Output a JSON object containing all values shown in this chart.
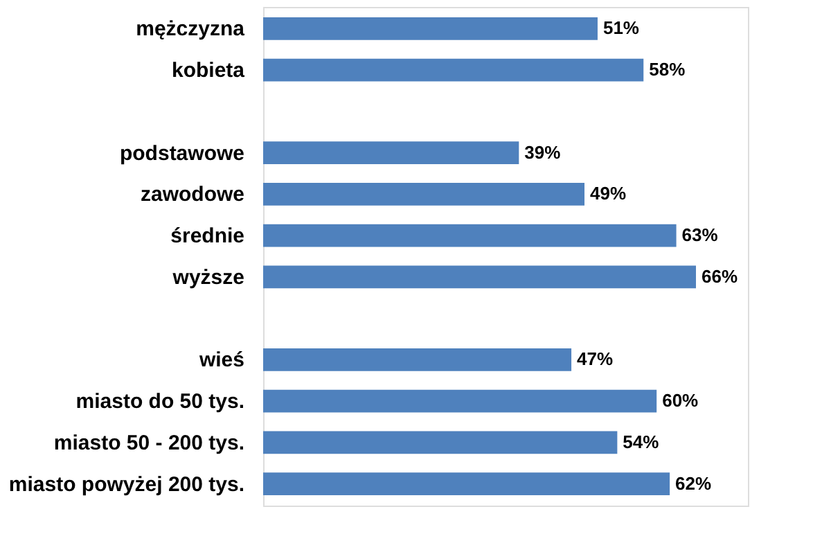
{
  "chart_data": {
    "type": "bar",
    "orientation": "horizontal",
    "categories": [
      "mężczyzna",
      "kobieta",
      null,
      "podstawowe",
      "zawodowe",
      "średnie",
      "wyższe",
      null,
      "wieś",
      "miasto do 50 tys.",
      "miasto 50 - 200 tys.",
      "miasto powyżej 200 tys."
    ],
    "values": [
      51,
      58,
      null,
      39,
      49,
      63,
      66,
      null,
      47,
      60,
      54,
      62
    ],
    "value_labels": [
      "51%",
      "58%",
      null,
      "39%",
      "49%",
      "63%",
      "66%",
      null,
      "47%",
      "60%",
      "54%",
      "62%"
    ],
    "color": "#4f81bd"
  }
}
